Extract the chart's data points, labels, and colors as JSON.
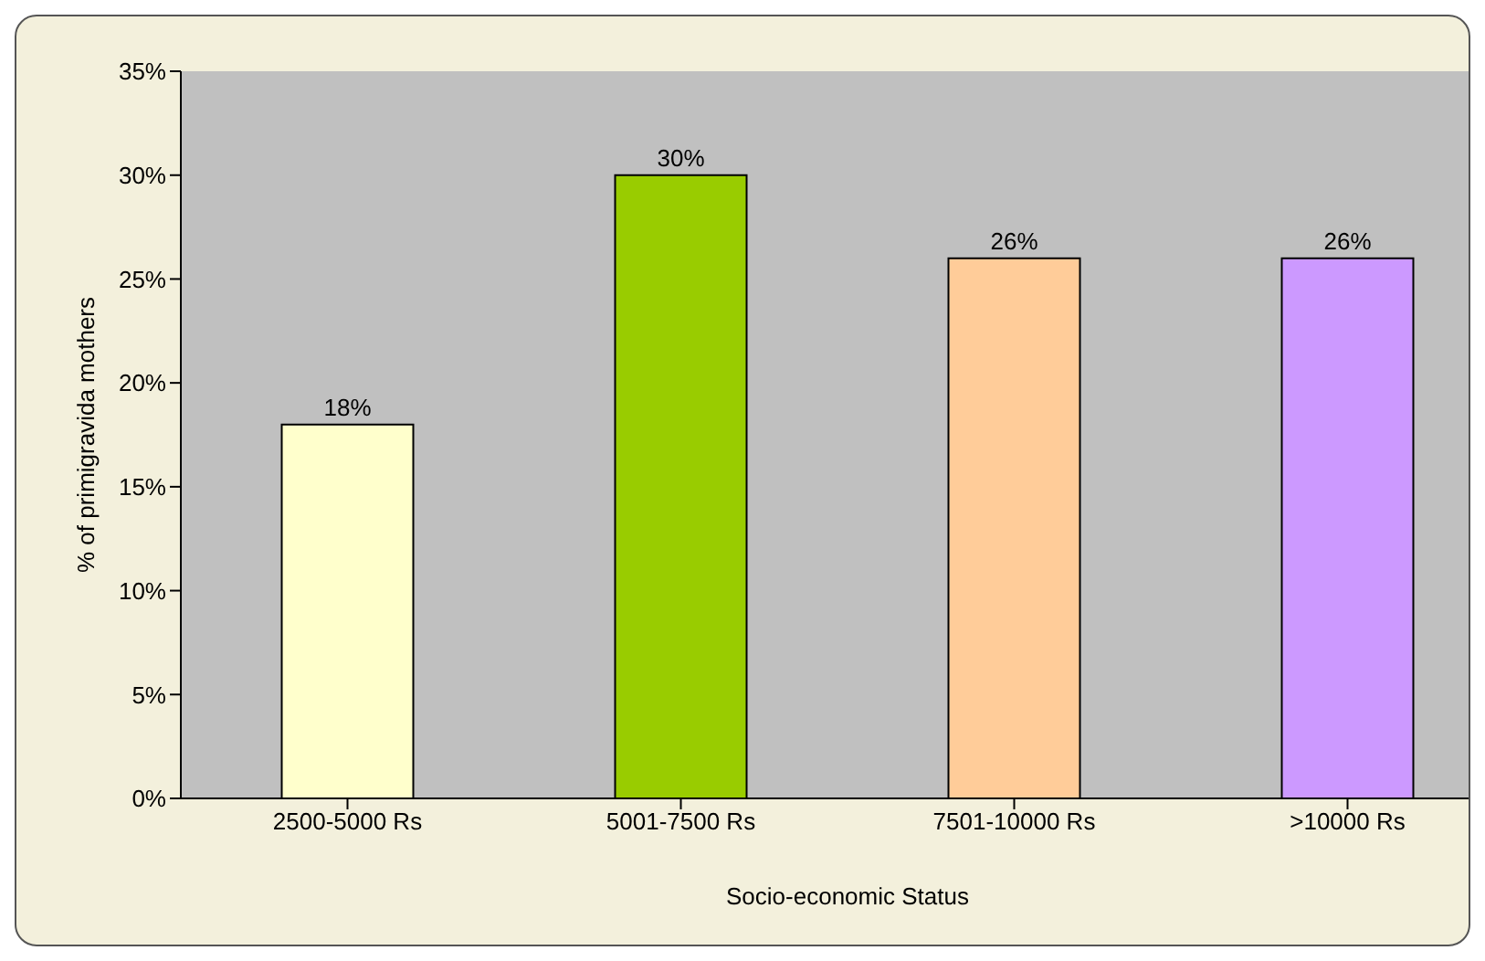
{
  "chart_data": {
    "type": "bar",
    "xlabel": "Socio-economic Status",
    "ylabel": "% of primigravida mothers",
    "categories": [
      "2500-5000 Rs",
      "5001-7500 Rs",
      "7501-10000 Rs",
      ">10000 Rs"
    ],
    "values": [
      18,
      30,
      26,
      26
    ],
    "colors": [
      "#ffffcc",
      "#99cc00",
      "#ffcc99",
      "#cc99ff"
    ],
    "value_labels": [
      "18%",
      "30%",
      "26%",
      "26%"
    ],
    "ylim": [
      0,
      35
    ],
    "yticks": [
      {
        "value": 0,
        "label": "0%"
      },
      {
        "value": 5,
        "label": "5%"
      },
      {
        "value": 10,
        "label": "10%"
      },
      {
        "value": 15,
        "label": "15%"
      },
      {
        "value": 20,
        "label": "20%"
      },
      {
        "value": 25,
        "label": "25%"
      },
      {
        "value": 30,
        "label": "30%"
      },
      {
        "value": 35,
        "label": "35%"
      }
    ],
    "grid": false
  }
}
